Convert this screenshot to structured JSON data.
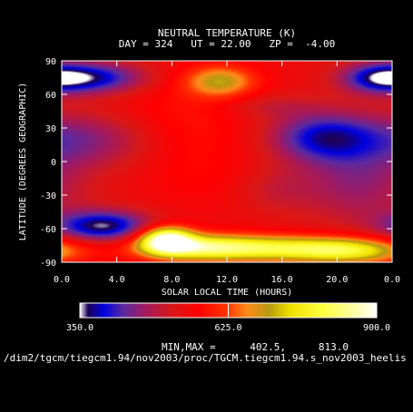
{
  "chart_data": {
    "type": "heatmap",
    "title": "NEUTRAL TEMPERATURE (K)",
    "subtitle": "DAY = 324   UT = 22.00   ZP =  -4.00",
    "xlabel": "SOLAR LOCAL TIME (HOURS)",
    "ylabel": "LATITUDE (DEGREES GEOGRAPHIC)",
    "xlim": [
      0,
      24
    ],
    "ylim": [
      -90,
      90
    ],
    "xticks": [
      "0.0",
      "4.0",
      "8.0",
      "12.0",
      "16.0",
      "20.0",
      "0.0"
    ],
    "yticks": [
      "90",
      "60",
      "30",
      "0",
      "-30",
      "-60",
      "-90"
    ],
    "colorbar": {
      "min": 350.0,
      "max": 900.0,
      "labels": [
        "350.0",
        "625.0",
        "900.0"
      ],
      "stops": [
        {
          "v": 350,
          "c": "#ffffff"
        },
        {
          "v": 365,
          "c": "#1e0055"
        },
        {
          "v": 395,
          "c": "#0000e0"
        },
        {
          "v": 430,
          "c": "#5a2aa0"
        },
        {
          "v": 470,
          "c": "#a01a60"
        },
        {
          "v": 520,
          "c": "#d81818"
        },
        {
          "v": 570,
          "c": "#ff0000"
        },
        {
          "v": 620,
          "c": "#ff3300"
        },
        {
          "v": 660,
          "c": "#ff8a1a"
        },
        {
          "v": 700,
          "c": "#b89a10"
        },
        {
          "v": 740,
          "c": "#f0e000"
        },
        {
          "v": 800,
          "c": "#ffff40"
        },
        {
          "v": 860,
          "c": "#ffffa8"
        },
        {
          "v": 900,
          "c": "#ffffff"
        }
      ]
    },
    "field": {
      "base_temperature": 545,
      "features": [
        {
          "x": 2.5,
          "y": 75,
          "sx": 2.6,
          "sy": 10,
          "amp": -150
        },
        {
          "x": 23.0,
          "y": 75,
          "sx": 2.0,
          "sy": 10,
          "amp": -150
        },
        {
          "x": 11.5,
          "y": 72,
          "sx": 1.8,
          "sy": 10,
          "amp": 150
        },
        {
          "x": 15.0,
          "y": 50,
          "sx": 2.5,
          "sy": 8,
          "amp": -40
        },
        {
          "x": 19.0,
          "y": 22,
          "sx": 2.8,
          "sy": 16,
          "amp": -150
        },
        {
          "x": 2.0,
          "y": 20,
          "sx": 3.5,
          "sy": 18,
          "amp": -90
        },
        {
          "x": 21.5,
          "y": -20,
          "sx": 3.0,
          "sy": 25,
          "amp": -80
        },
        {
          "x": 15.5,
          "y": -25,
          "sx": 2.0,
          "sy": 15,
          "amp": -40
        },
        {
          "x": 3.0,
          "y": -58,
          "sx": 2.5,
          "sy": 10,
          "amp": -185
        },
        {
          "x": 7.6,
          "y": -70,
          "sx": 1.3,
          "sy": 8,
          "amp": 330
        },
        {
          "x": 9.5,
          "y": -77,
          "sx": 3.0,
          "sy": 8,
          "amp": 210
        },
        {
          "x": 15.0,
          "y": -78,
          "sx": 4.0,
          "sy": 8,
          "amp": 210
        },
        {
          "x": 21.0,
          "y": -80,
          "sx": 3.0,
          "sy": 8,
          "amp": 200
        },
        {
          "x": 8.5,
          "y": 40,
          "sx": 4.0,
          "sy": 25,
          "amp": 40
        },
        {
          "x": 10.0,
          "y": -10,
          "sx": 3.5,
          "sy": 25,
          "amp": 25
        }
      ]
    }
  },
  "minmax": {
    "label": "MIN,MAX =",
    "min": "402.5,",
    "max": "813.0"
  },
  "file_path": "/dim2/tgcm/tiegcm1.94/nov2003/proc/TGCM.tiegcm1.94.s_nov2003_heelis"
}
